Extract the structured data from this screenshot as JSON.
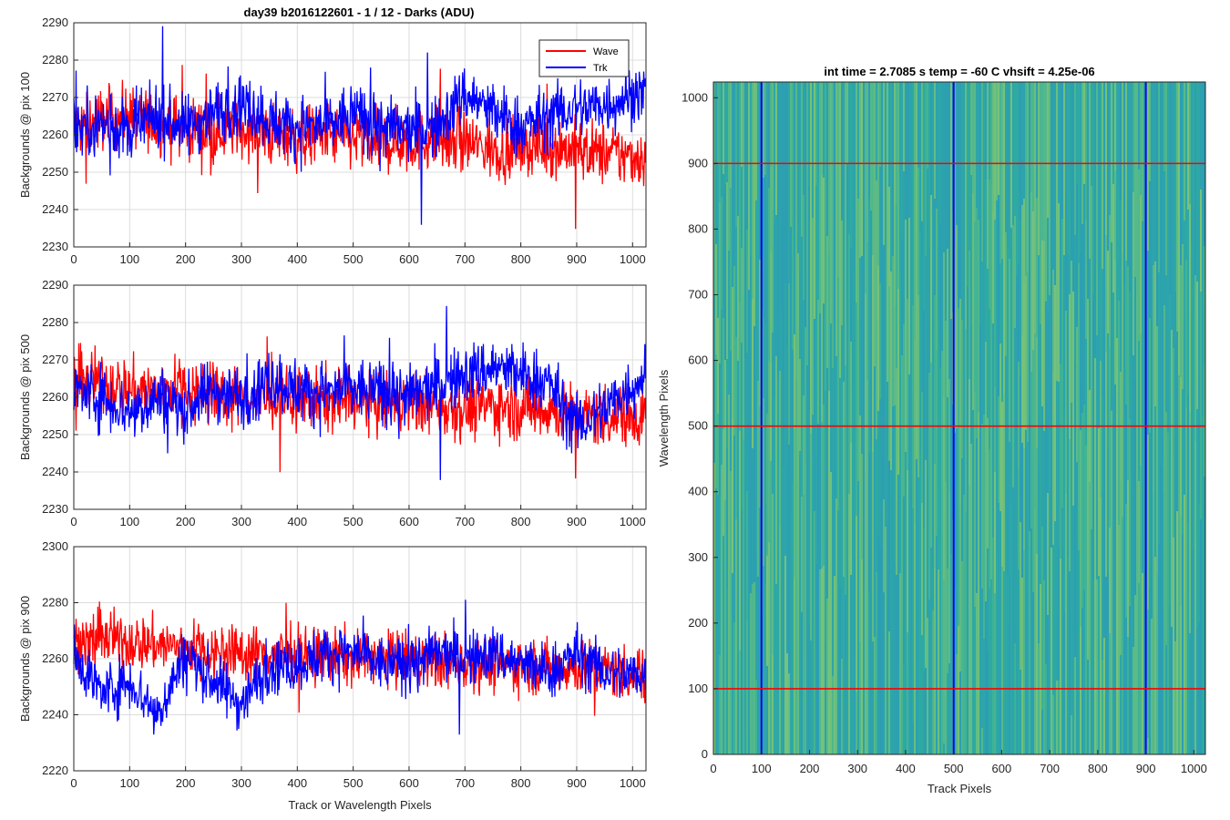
{
  "figure": {
    "suptitle": "day39 b2016122601 - 1 / 12 - Darks (ADU)",
    "heatmap_title": "int time = 2.7085 s    temp = -60 C    vhsift = 4.25e-06"
  },
  "colors": {
    "wave": "#ff0000",
    "trk": "#0000ff",
    "grid": "#dcdcdc",
    "heat_base": "#2fae9e",
    "heat_bright": "#b5d35a",
    "heat_dark": "#2a8fc8"
  },
  "legend": {
    "wave_label": "Wave",
    "trk_label": "Trk"
  },
  "chart_data": [
    {
      "type": "line",
      "ylabel": "Backgrounds @ pix 100",
      "xlabel": "",
      "xlim": [
        0,
        1024
      ],
      "ylim": [
        2230,
        2290
      ],
      "xticks": [
        0,
        100,
        200,
        300,
        400,
        500,
        600,
        700,
        800,
        900,
        1000
      ],
      "yticks": [
        2230,
        2240,
        2250,
        2260,
        2270,
        2280,
        2290
      ],
      "grid": true,
      "legend_position": "top-right",
      "series": [
        {
          "name": "Wave",
          "color": "#ff0000",
          "x": [
            0,
            50,
            100,
            150,
            200,
            250,
            300,
            350,
            400,
            450,
            500,
            550,
            600,
            650,
            700,
            750,
            800,
            850,
            900,
            950,
            1023
          ],
          "y": [
            2262,
            2264,
            2265,
            2263,
            2262,
            2261,
            2262,
            2260,
            2259,
            2260,
            2259,
            2258,
            2258,
            2259,
            2258,
            2256,
            2257,
            2257,
            2256,
            2255,
            2254
          ]
        },
        {
          "name": "Trk",
          "color": "#0000ff",
          "x": [
            0,
            50,
            100,
            150,
            200,
            250,
            300,
            350,
            400,
            450,
            500,
            550,
            600,
            650,
            700,
            750,
            800,
            850,
            900,
            950,
            1023
          ],
          "y": [
            2262,
            2263,
            2261,
            2265,
            2262,
            2266,
            2269,
            2264,
            2262,
            2262,
            2266,
            2262,
            2261,
            2262,
            2271,
            2266,
            2262,
            2265,
            2267,
            2268,
            2272
          ]
        }
      ]
    },
    {
      "type": "line",
      "ylabel": "Backgrounds @ pix 500",
      "xlabel": "",
      "xlim": [
        0,
        1024
      ],
      "ylim": [
        2230,
        2290
      ],
      "xticks": [
        0,
        100,
        200,
        300,
        400,
        500,
        600,
        700,
        800,
        900,
        1000
      ],
      "yticks": [
        2230,
        2240,
        2250,
        2260,
        2270,
        2280,
        2290
      ],
      "grid": true,
      "series": [
        {
          "name": "Wave",
          "color": "#ff0000",
          "x": [
            0,
            50,
            100,
            150,
            200,
            250,
            300,
            350,
            400,
            450,
            500,
            550,
            600,
            650,
            700,
            750,
            800,
            850,
            900,
            950,
            1023
          ],
          "y": [
            2263,
            2264,
            2262,
            2262,
            2263,
            2261,
            2260,
            2259,
            2260,
            2259,
            2259,
            2258,
            2259,
            2258,
            2257,
            2258,
            2257,
            2257,
            2255,
            2255,
            2255
          ]
        },
        {
          "name": "Trk",
          "color": "#0000ff",
          "x": [
            0,
            50,
            100,
            150,
            200,
            250,
            300,
            350,
            400,
            450,
            500,
            550,
            600,
            650,
            700,
            750,
            800,
            850,
            900,
            950,
            1023
          ],
          "y": [
            2262,
            2260,
            2256,
            2260,
            2257,
            2262,
            2260,
            2265,
            2262,
            2261,
            2262,
            2262,
            2260,
            2263,
            2266,
            2268,
            2266,
            2264,
            2252,
            2257,
            2266
          ]
        }
      ]
    },
    {
      "type": "line",
      "ylabel": "Backgrounds @ pix 900",
      "xlabel": "Track or Wavelength Pixels",
      "xlim": [
        0,
        1024
      ],
      "ylim": [
        2220,
        2300
      ],
      "xticks": [
        0,
        100,
        200,
        300,
        400,
        500,
        600,
        700,
        800,
        900,
        1000
      ],
      "yticks": [
        2220,
        2240,
        2260,
        2280,
        2300
      ],
      "grid": true,
      "series": [
        {
          "name": "Wave",
          "color": "#ff0000",
          "x": [
            0,
            50,
            100,
            150,
            200,
            250,
            300,
            350,
            400,
            450,
            500,
            550,
            600,
            650,
            700,
            750,
            800,
            850,
            900,
            950,
            1023
          ],
          "y": [
            2266,
            2267,
            2266,
            2265,
            2264,
            2263,
            2262,
            2262,
            2261,
            2261,
            2260,
            2260,
            2260,
            2259,
            2259,
            2258,
            2258,
            2257,
            2257,
            2256,
            2254
          ]
        },
        {
          "name": "Trk",
          "color": "#0000ff",
          "x": [
            0,
            50,
            100,
            150,
            200,
            250,
            300,
            350,
            400,
            450,
            500,
            550,
            600,
            650,
            700,
            750,
            800,
            850,
            900,
            950,
            1023
          ],
          "y": [
            2262,
            2248,
            2252,
            2240,
            2262,
            2252,
            2244,
            2258,
            2258,
            2262,
            2262,
            2258,
            2258,
            2262,
            2260,
            2262,
            2258,
            2255,
            2262,
            2255,
            2254
          ]
        }
      ]
    },
    {
      "type": "heatmap",
      "title": "int time = 2.7085 s    temp = -60 C    vhsift = 4.25e-06",
      "xlabel": "Track Pixels",
      "ylabel": "Wavelength Pixels",
      "xlim": [
        0,
        1024
      ],
      "ylim": [
        0,
        1024
      ],
      "xticks": [
        0,
        100,
        200,
        300,
        400,
        500,
        600,
        700,
        800,
        900,
        1000
      ],
      "yticks": [
        0,
        100,
        200,
        300,
        400,
        500,
        600,
        700,
        800,
        900,
        1000
      ],
      "vertical_markers": [
        100,
        500,
        900
      ],
      "horizontal_markers": [
        100,
        500,
        900
      ]
    }
  ]
}
